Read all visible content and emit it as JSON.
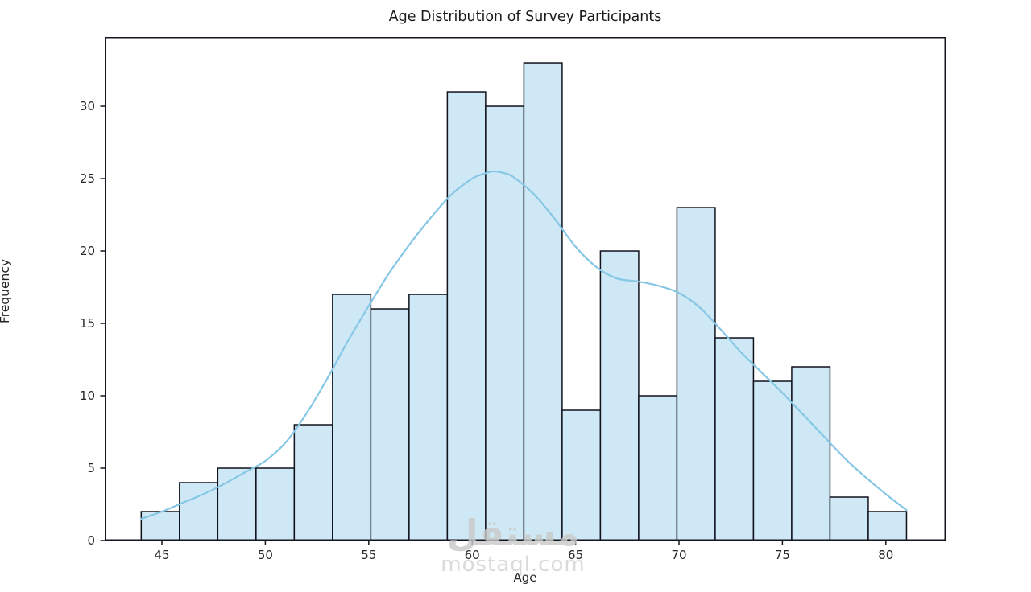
{
  "chart_data": {
    "type": "bar",
    "subtype": "histogram_with_kde",
    "title": "Age Distribution of Survey Participants",
    "xlabel": "Age",
    "ylabel": "Frequency",
    "grid": false,
    "legend": "none",
    "xlim": [
      42.235,
      82.89
    ],
    "ylim": [
      0,
      34.78
    ],
    "x_ticks": [
      45,
      50,
      55,
      60,
      65,
      70,
      75,
      80
    ],
    "y_ticks": [
      0,
      5,
      10,
      15,
      20,
      25,
      30
    ],
    "bin_edges": [
      44.0,
      45.85,
      47.7,
      49.55,
      51.4,
      53.25,
      55.1,
      56.95,
      58.8,
      60.65,
      62.5,
      64.35,
      66.2,
      68.05,
      69.9,
      71.75,
      73.6,
      75.45,
      77.3,
      79.15,
      81.0
    ],
    "counts": [
      2,
      4,
      5,
      5,
      8,
      17,
      16,
      17,
      31,
      30,
      33,
      9,
      20,
      10,
      23,
      14,
      11,
      12,
      3,
      2
    ],
    "kde": {
      "x": [
        44,
        45,
        46,
        47,
        48,
        49,
        50,
        51,
        52,
        53,
        54,
        55,
        56,
        57,
        58,
        59,
        60,
        60.5,
        61,
        61.5,
        62,
        63,
        64,
        65,
        66,
        67,
        68,
        69,
        70,
        71,
        72,
        73,
        74,
        75,
        76,
        77,
        78,
        79,
        80,
        81
      ],
      "y": [
        1.5,
        2.0,
        2.6,
        3.2,
        3.9,
        4.7,
        5.5,
        6.8,
        8.8,
        11.2,
        13.8,
        16.2,
        18.5,
        20.5,
        22.3,
        23.9,
        25.0,
        25.3,
        25.5,
        25.4,
        25.1,
        23.9,
        22.2,
        20.3,
        18.9,
        18.1,
        17.9,
        17.6,
        17.1,
        16.1,
        14.6,
        13.0,
        11.6,
        10.2,
        8.7,
        7.2,
        5.7,
        4.4,
        3.2,
        2.1
      ]
    },
    "colors": {
      "bar_fill": "#cfe8f5",
      "bar_edge": "#11111c",
      "kde_line": "#86c7e5",
      "spine": "#15151f",
      "text": "#262626",
      "watermark": "#cccccc"
    }
  },
  "watermark": {
    "logo_text": "مستقل",
    "site_text": "mostaql.com"
  }
}
